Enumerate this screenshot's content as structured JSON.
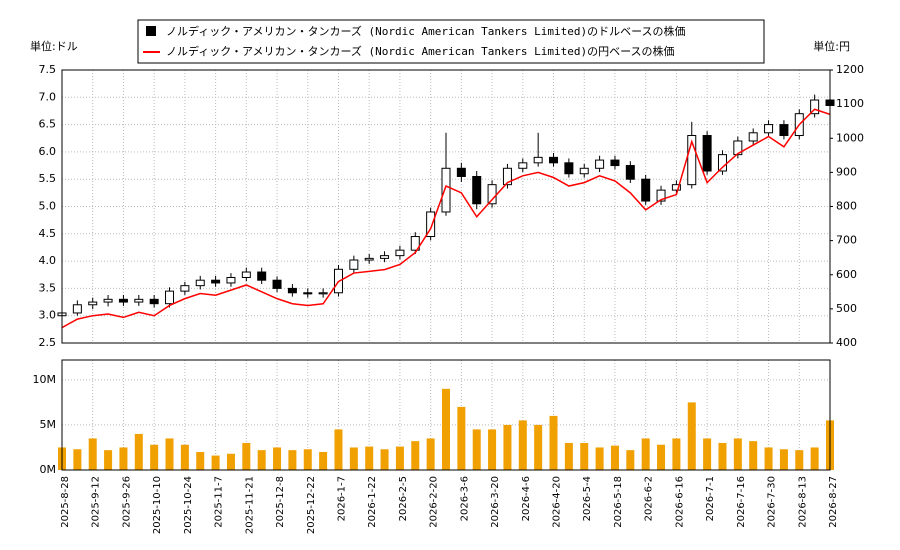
{
  "chart_data": {
    "type": "candlestick",
    "left_unit": "単位:ドル",
    "right_unit": "単位:円",
    "categories": [
      "2025-8-28",
      null,
      "2025-9-12",
      null,
      "2025-9-26",
      null,
      "2025-10-10",
      null,
      "2025-10-24",
      null,
      "2025-11-7",
      null,
      "2025-11-21",
      null,
      "2025-12-8",
      null,
      "2025-12-22",
      null,
      "2026-1-7",
      null,
      "2026-1-22",
      null,
      "2026-2-5",
      null,
      "2026-2-20",
      null,
      "2026-3-6",
      null,
      "2026-3-20",
      null,
      "2026-4-6",
      null,
      "2026-4-20",
      null,
      "2026-5-4",
      null,
      "2026-5-18",
      null,
      "2026-6-2",
      null,
      "2026-6-16",
      null,
      "2026-7-1",
      null,
      "2026-7-16",
      null,
      "2026-7-30",
      null,
      "2026-8-13",
      null,
      "2026-8-27"
    ],
    "series": [
      {
        "name": "ノルディック・アメリカン・タンカーズ (Nordic American Tankers Limited)のドルベースの株価",
        "color": "#000000",
        "open": [
          3.0,
          3.05,
          3.2,
          3.25,
          3.3,
          3.25,
          3.3,
          3.22,
          3.45,
          3.55,
          3.65,
          3.6,
          3.7,
          3.8,
          3.65,
          3.5,
          3.42,
          3.4,
          3.42,
          3.85,
          4.02,
          4.05,
          4.1,
          4.2,
          4.45,
          4.9,
          5.7,
          5.55,
          5.05,
          5.4,
          5.7,
          5.8,
          5.9,
          5.8,
          5.6,
          5.7,
          5.85,
          5.75,
          5.5,
          5.1,
          5.3,
          5.4,
          6.3,
          5.65,
          5.95,
          6.2,
          6.35,
          6.5,
          6.3,
          6.7,
          6.95
        ],
        "high": [
          3.12,
          3.28,
          3.33,
          3.38,
          3.38,
          3.38,
          3.38,
          3.52,
          3.62,
          3.73,
          3.73,
          3.78,
          3.88,
          3.88,
          3.72,
          3.58,
          3.5,
          3.5,
          3.93,
          4.1,
          4.13,
          4.18,
          4.28,
          4.53,
          4.98,
          6.35,
          5.8,
          5.65,
          5.48,
          5.78,
          5.88,
          6.35,
          5.98,
          5.88,
          5.78,
          5.93,
          5.93,
          5.83,
          5.58,
          5.38,
          5.48,
          6.55,
          6.38,
          6.03,
          6.28,
          6.43,
          6.58,
          6.58,
          6.78,
          7.05,
          7.1
        ],
        "low": [
          2.95,
          3.0,
          3.12,
          3.17,
          3.18,
          3.18,
          3.15,
          3.15,
          3.38,
          3.48,
          3.53,
          3.53,
          3.63,
          3.58,
          3.43,
          3.35,
          3.33,
          3.33,
          3.35,
          3.78,
          3.95,
          3.98,
          4.03,
          4.13,
          4.38,
          4.83,
          5.45,
          4.95,
          4.98,
          5.33,
          5.63,
          5.73,
          5.73,
          5.53,
          5.53,
          5.63,
          5.68,
          5.43,
          5.03,
          5.03,
          5.23,
          5.33,
          5.58,
          5.58,
          5.88,
          6.13,
          6.28,
          6.23,
          6.23,
          6.63,
          6.6
        ],
        "close": [
          3.05,
          3.2,
          3.25,
          3.3,
          3.25,
          3.3,
          3.22,
          3.45,
          3.55,
          3.65,
          3.6,
          3.7,
          3.8,
          3.65,
          3.5,
          3.42,
          3.4,
          3.42,
          3.85,
          4.02,
          4.05,
          4.1,
          4.2,
          4.45,
          4.9,
          5.7,
          5.55,
          5.05,
          5.4,
          5.7,
          5.8,
          5.9,
          5.8,
          5.6,
          5.7,
          5.85,
          5.75,
          5.5,
          5.1,
          5.3,
          5.4,
          6.3,
          5.65,
          5.95,
          6.2,
          6.35,
          6.5,
          6.3,
          6.7,
          6.95,
          6.85
        ]
      },
      {
        "name": "ノルディック・アメリカン・タンカーズ (Nordic American Tankers Limited)の円ベースの株価",
        "color": "#ff0000",
        "axis": "y2",
        "values": [
          445,
          470,
          480,
          485,
          475,
          490,
          480,
          510,
          530,
          545,
          540,
          555,
          570,
          550,
          530,
          515,
          510,
          515,
          580,
          605,
          610,
          615,
          630,
          665,
          735,
          860,
          840,
          770,
          820,
          870,
          890,
          900,
          885,
          860,
          870,
          890,
          875,
          840,
          790,
          820,
          835,
          990,
          870,
          915,
          955,
          980,
          1005,
          975,
          1040,
          1085,
          1070
        ]
      }
    ],
    "ylim": [
      2.5,
      7.5
    ],
    "yticks": [
      2.5,
      {
        "value": 3,
        "label": "3.0"
      },
      3.5,
      {
        "value": 4,
        "label": "4.0"
      },
      4.5,
      {
        "value": 5,
        "label": "5.0"
      },
      5.5,
      {
        "value": 6,
        "label": "6.0"
      },
      6.5,
      {
        "value": 7,
        "label": "7.0"
      },
      7.5
    ],
    "y2lim": [
      400,
      1200
    ],
    "y2ticks": [
      400,
      500,
      600,
      700,
      800,
      900,
      1000,
      1100,
      1200
    ],
    "volume": {
      "color": "#f0a000",
      "values": [
        2500000,
        2300000,
        3500000,
        2200000,
        2500000,
        4000000,
        2800000,
        3500000,
        2800000,
        2000000,
        1600000,
        1800000,
        3000000,
        2200000,
        2500000,
        2200000,
        2300000,
        2000000,
        4500000,
        2500000,
        2600000,
        2300000,
        2600000,
        3200000,
        3500000,
        9000000,
        7000000,
        4500000,
        4500000,
        5000000,
        5500000,
        5000000,
        6000000,
        3000000,
        3000000,
        2500000,
        2700000,
        2200000,
        3500000,
        2800000,
        3500000,
        7500000,
        3500000,
        3000000,
        3500000,
        3200000,
        2500000,
        2300000,
        2200000,
        2500000,
        5500000
      ],
      "ylim": [
        0,
        12200000
      ],
      "yticks": [
        {
          "value": 0,
          "label": "0M"
        },
        {
          "value": 5000000,
          "label": "5M"
        },
        {
          "value": 10000000,
          "label": "10M"
        }
      ]
    },
    "grid": true
  }
}
